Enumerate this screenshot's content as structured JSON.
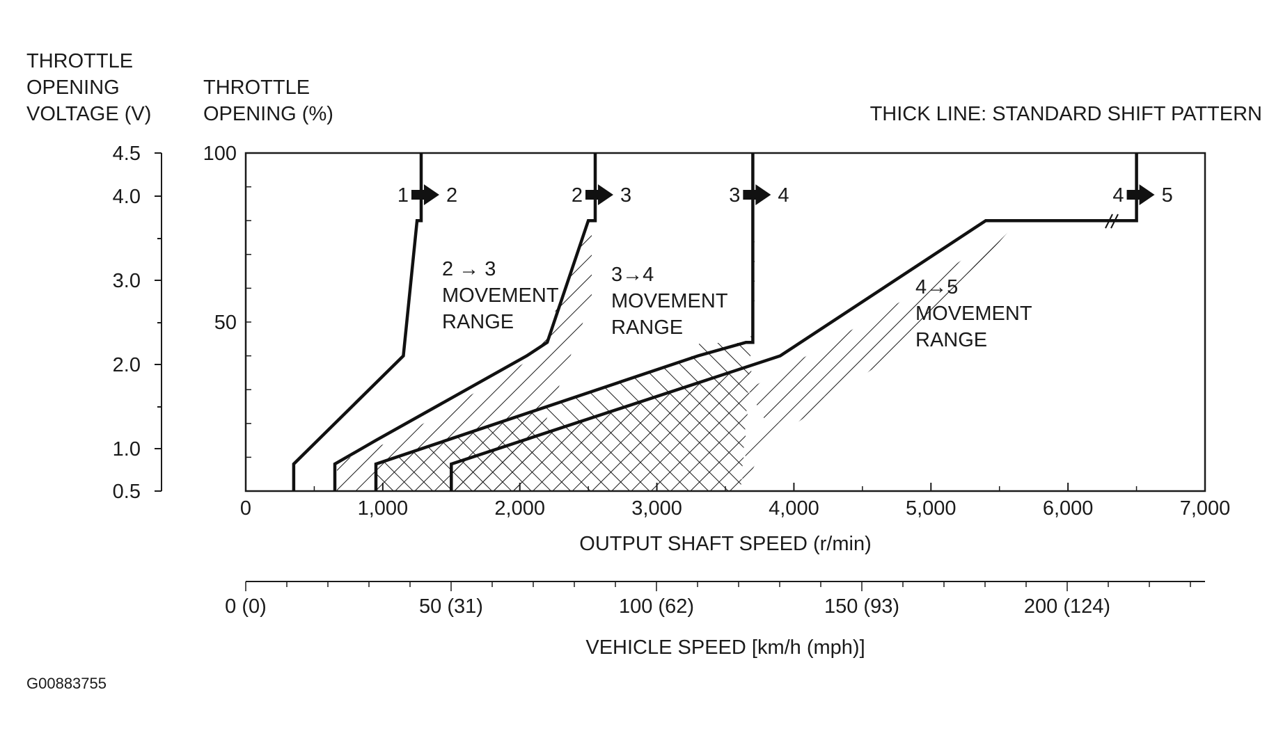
{
  "chart_data": {
    "type": "line",
    "title": "",
    "legend_note": "THICK LINE: STANDARD SHIFT PATTERN",
    "figure_id": "G00883755",
    "left_axis": {
      "label_lines": [
        "THROTTLE",
        "OPENING",
        "VOLTAGE (V)"
      ],
      "ticks": [
        "4.5",
        "4.0",
        "3.0",
        "2.0",
        "1.0",
        "0.5"
      ]
    },
    "y_axis": {
      "label_lines": [
        "THROTTLE",
        "OPENING (%)"
      ],
      "ticks": [
        "100",
        "50"
      ],
      "range": [
        0,
        100
      ]
    },
    "x_axis": {
      "label": "OUTPUT SHAFT SPEED (r/min)",
      "range": [
        0,
        7000
      ],
      "ticks": [
        "0",
        "1,000",
        "2,000",
        "3,000",
        "4,000",
        "5,000",
        "6,000",
        "7,000"
      ]
    },
    "secondary_x_axis": {
      "label": "VEHICLE SPEED [km/h (mph)]",
      "ticks": [
        "0 (0)",
        "50 (31)",
        "100 (62)",
        "150 (93)",
        "200 (124)"
      ]
    },
    "shift_labels": [
      {
        "from": "1",
        "to": "2"
      },
      {
        "from": "2",
        "to": "3"
      },
      {
        "from": "3",
        "to": "4"
      },
      {
        "from": "4",
        "to": "5"
      }
    ],
    "range_labels": [
      {
        "lines": [
          "2 → 3",
          "MOVEMENT",
          "RANGE"
        ]
      },
      {
        "lines": [
          "3→4",
          "MOVEMENT",
          "RANGE"
        ]
      },
      {
        "lines": [
          "4→5",
          "MOVEMENT",
          "RANGE"
        ]
      }
    ],
    "series": [
      {
        "name": "1 → 2",
        "points": [
          [
            350,
            0
          ],
          [
            350,
            8
          ],
          [
            1150,
            40
          ],
          [
            1250,
            80
          ],
          [
            1280,
            80
          ],
          [
            1280,
            100
          ]
        ]
      },
      {
        "name": "2 → 3",
        "points": [
          [
            650,
            0
          ],
          [
            650,
            8
          ],
          [
            950,
            15
          ],
          [
            2050,
            40
          ],
          [
            2200,
            44
          ],
          [
            2500,
            80
          ],
          [
            2550,
            80
          ],
          [
            2550,
            100
          ]
        ]
      },
      {
        "name": "3 → 4",
        "points": [
          [
            950,
            0
          ],
          [
            950,
            8
          ],
          [
            3300,
            40
          ],
          [
            3650,
            44
          ],
          [
            3700,
            44
          ],
          [
            3700,
            100
          ]
        ]
      },
      {
        "name": "4 → 5",
        "points": [
          [
            1500,
            0
          ],
          [
            1500,
            8
          ],
          [
            3900,
            40
          ],
          [
            5400,
            80
          ],
          [
            6500,
            80
          ],
          [
            6500,
            100
          ]
        ]
      }
    ]
  }
}
